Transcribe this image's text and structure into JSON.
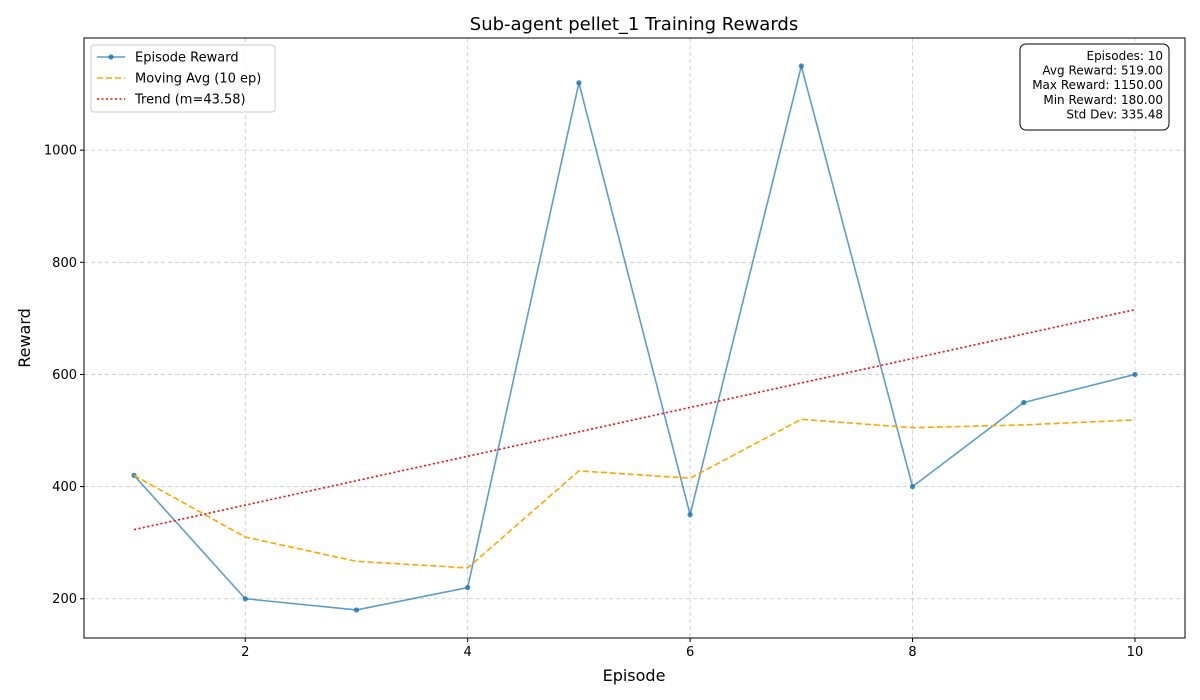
{
  "chart_data": {
    "type": "line",
    "title": "Sub-agent pellet_1 Training Rewards",
    "xlabel": "Episode",
    "ylabel": "Reward",
    "xlim": [
      0.55,
      10.45
    ],
    "ylim": [
      130,
      1200
    ],
    "x_ticks": [
      2,
      4,
      6,
      8,
      10
    ],
    "y_ticks": [
      200,
      400,
      600,
      800,
      1000
    ],
    "grid": true,
    "legend_position": "top-left",
    "x": [
      1,
      2,
      3,
      4,
      5,
      6,
      7,
      8,
      9,
      10
    ],
    "series": [
      {
        "name": "Episode Reward",
        "style": "solid-with-markers",
        "color": "#1f77b4",
        "values": [
          420,
          200,
          180,
          220,
          1120,
          350,
          1150,
          400,
          550,
          600
        ]
      },
      {
        "name": "Moving Avg (10 ep)",
        "style": "dashed",
        "color": "#ffa500",
        "values": [
          420,
          310,
          266.67,
          255,
          428,
          415,
          520,
          505,
          510,
          519
        ]
      },
      {
        "name": "Trend (m=43.58)",
        "style": "dotted",
        "color": "#ff0000",
        "values": [
          323.3,
          366.9,
          410.5,
          454.1,
          497.6,
          541.2,
          584.8,
          628.4,
          672.0,
          715.6
        ]
      }
    ],
    "stats_box": {
      "position": "top-right",
      "lines": [
        "Episodes: 10",
        "Avg Reward: 519.00",
        "Max Reward: 1150.00",
        "Min Reward: 180.00",
        "Std Dev: 335.48"
      ]
    }
  }
}
